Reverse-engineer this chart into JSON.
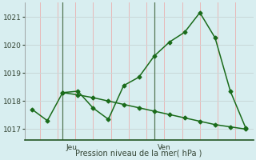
{
  "title": "Pression niveau de la mer( hPa )",
  "bg_color": "#d8eef0",
  "grid_color_v": "#e8b8b8",
  "grid_color_h": "#c8d8d8",
  "line_color": "#1a6b1a",
  "ylim": [
    1016.6,
    1021.5
  ],
  "yticks": [
    1017,
    1018,
    1019,
    1020,
    1021
  ],
  "day_labels": [
    "Jeu",
    "Ven"
  ],
  "vline_x": [
    2,
    8
  ],
  "series1_x": [
    0,
    1,
    2,
    3,
    4,
    5,
    6,
    7,
    8,
    9,
    10,
    11,
    12,
    13,
    14
  ],
  "series1_y": [
    1017.7,
    1017.3,
    1018.3,
    1018.35,
    1017.75,
    1017.35,
    1018.55,
    1018.85,
    1019.6,
    1020.1,
    1020.45,
    1021.15,
    1020.25,
    1018.35,
    1017.05
  ],
  "series2_x": [
    2,
    3,
    4,
    5,
    6,
    7,
    8,
    9,
    10,
    11,
    12,
    13,
    14
  ],
  "series2_y": [
    1018.3,
    1018.22,
    1018.12,
    1018.0,
    1017.88,
    1017.76,
    1017.64,
    1017.52,
    1017.4,
    1017.28,
    1017.16,
    1017.08,
    1017.0
  ],
  "xlim": [
    -0.5,
    14.5
  ],
  "num_vgrid": 13,
  "figsize": [
    3.2,
    2.0
  ],
  "dpi": 100
}
